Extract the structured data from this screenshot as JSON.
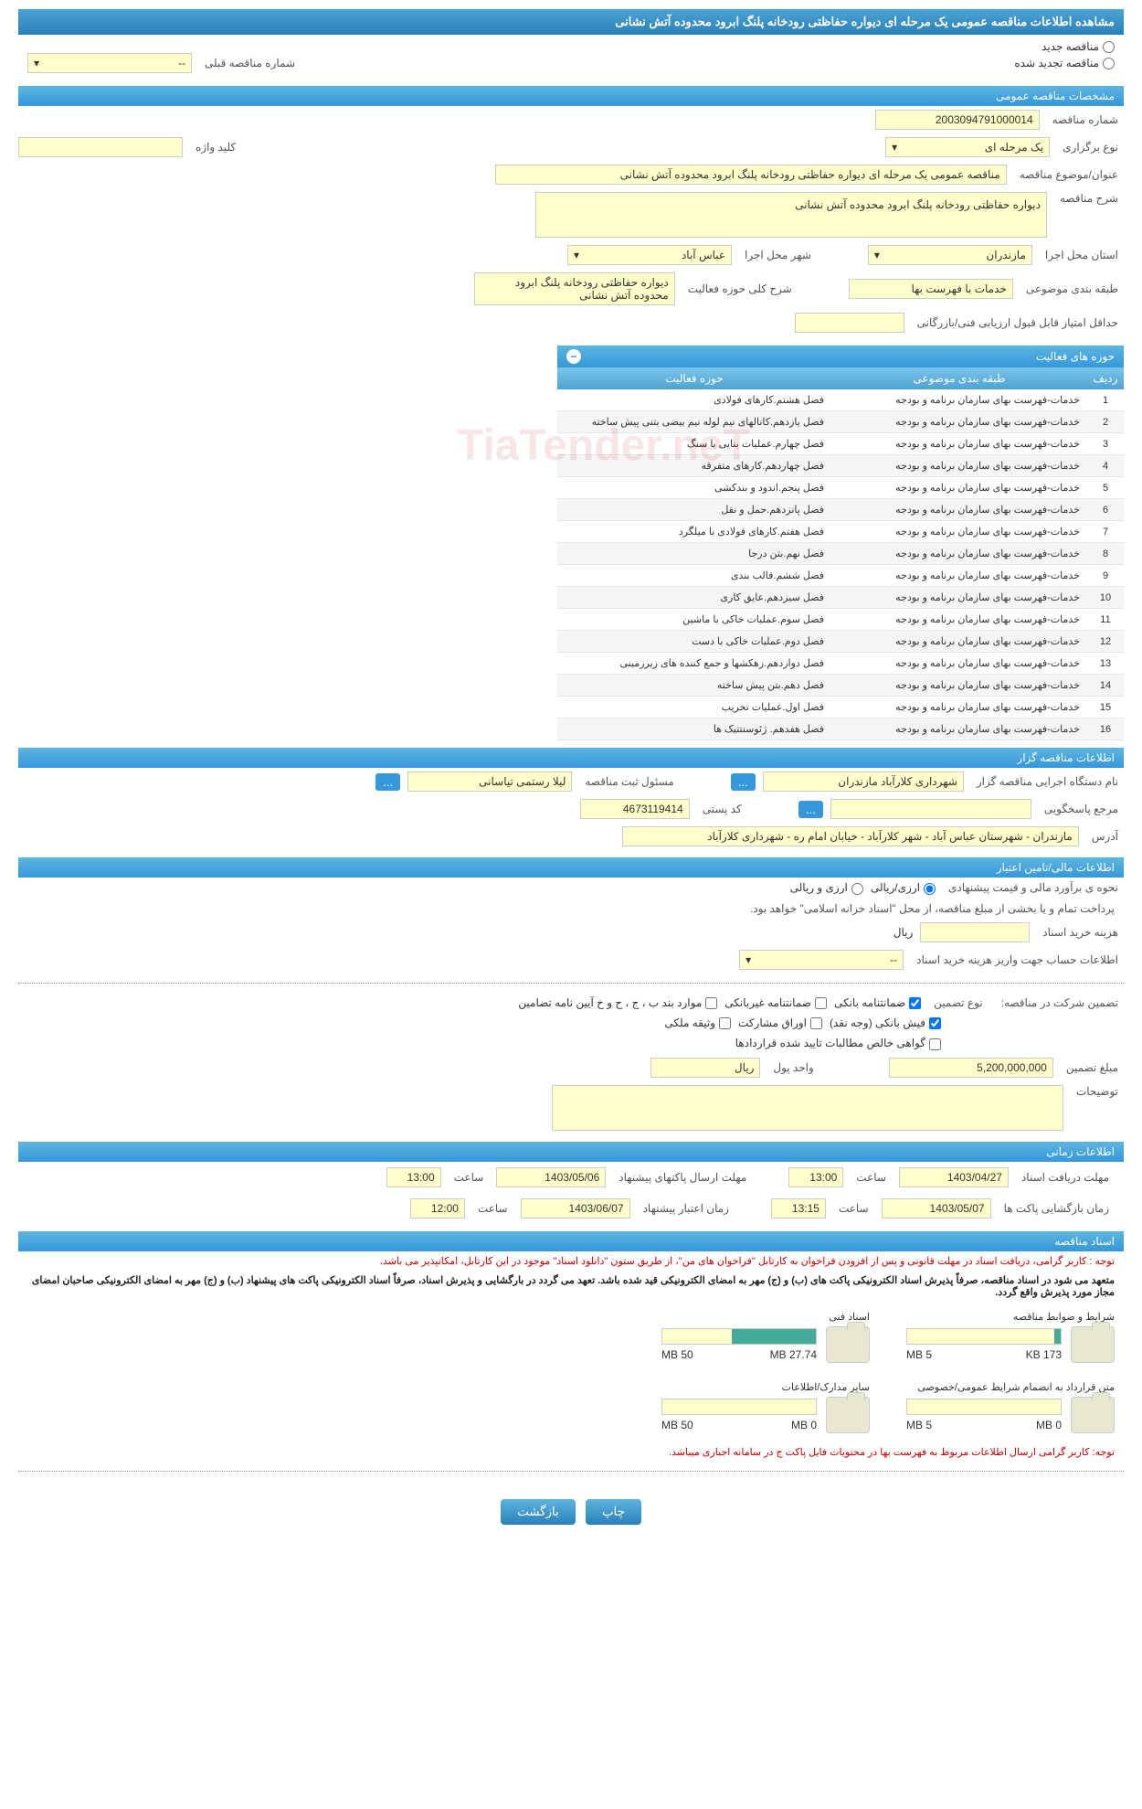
{
  "header": {
    "title": "مشاهده اطلاعات مناقصه عمومی یک مرحله ای دیواره حفاظتی رودخانه پلنگ ابرود محدوده آتش نشانی"
  },
  "top_options": {
    "new_tender": "مناقصه جدید",
    "renewed_tender": "مناقصه تجدید شده",
    "prev_number_label": "شماره مناقصه قبلی",
    "prev_number_value": "--"
  },
  "sections": {
    "general": "مشخصات مناقصه عمومی",
    "organizer": "اطلاعات مناقصه گزار",
    "financial": "اطلاعات مالی/تامین اعتبار",
    "timing": "اطلاعات زمانی",
    "documents": "اسناد مناقصه"
  },
  "general": {
    "tender_no_label": "شماره مناقصه",
    "tender_no": "2003094791000014",
    "hold_type_label": "نوع برگزاری",
    "hold_type": "یک مرحله ای",
    "keyword_label": "کلید واژه",
    "keyword": "",
    "subject_label": "عنوان/موضوع مناقصه",
    "subject": "مناقصه عمومی یک مرحله ای دیواره حفاظتی رودخانه پلنگ ابرود محدوده آتش نشانی",
    "desc_label": "شرح مناقصه",
    "desc": "دیواره حفاظتی رودخانه پلنگ ابرود محدوده آتش نشانی",
    "province_label": "استان محل اجرا",
    "province": "مازندران",
    "city_label": "شهر محل اجرا",
    "city": "عباس آباد",
    "category_label": "طبقه بندی موضوعی",
    "category": "خدمات با فهرست بها",
    "activity_desc_label": "شرح کلی حوزه فعالیت",
    "activity_desc": "دیواره حفاظتی رودخانه پلنگ ابرود محدوده آتش نشانی",
    "min_score_label": "حداقل امتیاز قابل قبول ارزیابی فنی/بازرگانی",
    "min_score": ""
  },
  "activity_table": {
    "title": "حوزه های فعالیت",
    "col_idx": "ردیف",
    "col_cat": "طبقه بندی موضوعی",
    "col_act": "حوزه فعالیت",
    "rows": [
      {
        "i": "1",
        "cat": "خدمات-فهرست بهای سازمان برنامه و بودجه",
        "act": "فصل هشتم.کارهای فولادی"
      },
      {
        "i": "2",
        "cat": "خدمات-فهرست بهای سازمان برنامه و بودجه",
        "act": "فصل یازدهم.کانالهای نیم لوله نیم بیضی بتنی پیش ساخته"
      },
      {
        "i": "3",
        "cat": "خدمات-فهرست بهای سازمان برنامه و بودجه",
        "act": "فصل چهارم.عملیات بنایی با سنگ"
      },
      {
        "i": "4",
        "cat": "خدمات-فهرست بهای سازمان برنامه و بودجه",
        "act": "فصل چهاردهم.کارهای متفرقه"
      },
      {
        "i": "5",
        "cat": "خدمات-فهرست بهای سازمان برنامه و بودجه",
        "act": "فصل پنجم.اندود و بندکشی"
      },
      {
        "i": "6",
        "cat": "خدمات-فهرست بهای سازمان برنامه و بودجه",
        "act": "فصل پانزدهم.حمل و نقل"
      },
      {
        "i": "7",
        "cat": "خدمات-فهرست بهای سازمان برنامه و بودجه",
        "act": "فصل هفتم.کارهای فولادی با میلگرد"
      },
      {
        "i": "8",
        "cat": "خدمات-فهرست بهای سازمان برنامه و بودجه",
        "act": "فصل نهم.بتن درجا"
      },
      {
        "i": "9",
        "cat": "خدمات-فهرست بهای سازمان برنامه و بودجه",
        "act": "فصل ششم.قالب بندی"
      },
      {
        "i": "10",
        "cat": "خدمات-فهرست بهای سازمان برنامه و بودجه",
        "act": "فصل سیزدهم.عایق کاری"
      },
      {
        "i": "11",
        "cat": "خدمات-فهرست بهای سازمان برنامه و بودجه",
        "act": "فصل سوم.عملیات خاکی با ماشین"
      },
      {
        "i": "12",
        "cat": "خدمات-فهرست بهای سازمان برنامه و بودجه",
        "act": "فصل دوم.عملیات خاکی با دست"
      },
      {
        "i": "13",
        "cat": "خدمات-فهرست بهای سازمان برنامه و بودجه",
        "act": "فصل دوازدهم.زهکشها و جمع کننده های زیرزمینی"
      },
      {
        "i": "14",
        "cat": "خدمات-فهرست بهای سازمان برنامه و بودجه",
        "act": "فصل دهم.بتن پیش ساخته"
      },
      {
        "i": "15",
        "cat": "خدمات-فهرست بهای سازمان برنامه و بودجه",
        "act": "فصل اول.عملیات تخریب"
      },
      {
        "i": "16",
        "cat": "خدمات-فهرست بهای سازمان برنامه و بودجه",
        "act": "فصل هفدهم. ژئوسنتتیک ها"
      }
    ]
  },
  "organizer": {
    "exec_label": "نام دستگاه اجرایی مناقصه گزار",
    "exec": "شهرداری کلارآباد   مازندران",
    "registrar_label": "مسئول ثبت مناقصه",
    "registrar": "لیلا رستمی تیاسانی",
    "ref_label": "مرجع پاسخگویی",
    "ref": "",
    "postal_label": "کد پستی",
    "postal": "4673119414",
    "address_label": "آدرس",
    "address": "مازندران - شهرستان عباس آباد - شهر کلارآباد - خیابان امام ره - شهرداری کلارآباد"
  },
  "financial": {
    "est_label": "نحوه ی برآورد مالی و قیمت پیشنهادی",
    "opt_arzi_riali": "ارزی/ریالی",
    "opt_arzi_o_riali": "ارزی و ریالی",
    "payment_note": "پرداخت تمام و یا بخشی از مبلغ مناقصه، از محل \"اسناد خزانه اسلامی\" خواهد بود.",
    "fee_label": "هزینه خرید اسناد",
    "fee": "",
    "currency1": "ریال",
    "account_label": "اطلاعات حساب جهت واریز هزینه خرید اسناد",
    "account": "--",
    "guarantee_label": "تضمین شرکت در مناقصه:",
    "g_type_label": "نوع تضمین",
    "g_bank": "ضمانتنامه بانکی",
    "g_nonbank": "ضمانتنامه غیربانکی",
    "g_items": "موارد بند ب ، ج ، ح و خ آیین نامه تضامین",
    "g_fish": "فیش بانکی (وجه نقد)",
    "g_bonds": "اوراق مشارکت",
    "g_estate": "وثیقه ملکی",
    "g_contract": "گواهی خالص مطالبات تایید شده قراردادها",
    "amount_label": "مبلغ تضمین",
    "amount": "5,200,000,000",
    "unit_label": "واحد پول",
    "unit": "ریال",
    "notes_label": "توضیحات",
    "notes": ""
  },
  "timing": {
    "doc_deadline_label": "مهلت دریافت اسناد",
    "doc_deadline_date": "1403/04/27",
    "doc_deadline_time": "13:00",
    "pkg_deadline_label": "مهلت ارسال پاکتهای پیشنهاد",
    "pkg_deadline_date": "1403/05/06",
    "pkg_deadline_time": "13:00",
    "open_label": "زمان بازگشایی پاکت ها",
    "open_date": "1403/05/07",
    "open_time": "13:15",
    "validity_label": "زمان اعتبار پیشنهاد",
    "validity_date": "1403/06/07",
    "validity_time": "12:00",
    "hour_label": "ساعت"
  },
  "documents": {
    "notice1": "توجه : کاربر گرامی، دریافت اسناد در مهلت قانونی و پس از افزودن فراخوان به کارتابل \"فراخوان های من\"، از طریق ستون \"دانلود اسناد\" موجود در این کارتابل، امکانپذیر می باشد.",
    "notice2": "متعهد می شود در اسناد مناقصه، صرفاً پذیرش اسناد الکترونیکی پاکت های (ب) و (ج) مهر به امضای الکترونیکی قید شده باشد. تعهد می گردد در بارگشایی و پذیرش اسناد، صرفاً اسناد الکترونیکی پاکت های پیشنهاد (ب) و (ج) مهر به امضای الکترونیکی صاحبان امضای مجاز مورد پذیرش واقع گردد.",
    "d1_label": "شرایط و ضوابط مناقصه",
    "d1_used": "173 KB",
    "d1_total": "5 MB",
    "d2_label": "اسناد فنی",
    "d2_used": "27.74 MB",
    "d2_total": "50 MB",
    "d3_label": "متن قرارداد به انضمام شرایط عمومی/خصوصی",
    "d3_used": "0 MB",
    "d3_total": "5 MB",
    "d4_label": "سایر مدارک/اطلاعات",
    "d4_used": "0 MB",
    "d4_total": "50 MB",
    "footer_notice": "توجه: کاربر گرامی ارسال اطلاعات مربوط به فهرست بها در محتویات فایل پاکت ج در سامانه اجباری میباشد."
  },
  "buttons": {
    "print": "چاپ",
    "back": "بازگشت",
    "ellipsis": "..."
  },
  "watermark": "TiaTender.neT"
}
